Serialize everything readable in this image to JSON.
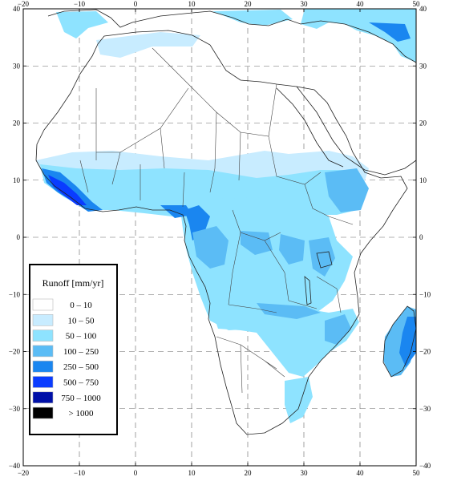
{
  "map": {
    "lon_range": [
      -20,
      50
    ],
    "lat_range": [
      -40,
      40
    ],
    "grid": "dashed",
    "lon_ticks": [
      "−20",
      "−10",
      "0",
      "10",
      "20",
      "30",
      "40",
      "50"
    ],
    "lat_ticks_left": [
      "40",
      "30",
      "20",
      "10",
      "0",
      "−10",
      "−20",
      "−30",
      "−40"
    ],
    "lat_ticks_right": [
      "40",
      "30",
      "20",
      "10",
      "0",
      "−10",
      "−20",
      "−30",
      "−40"
    ]
  },
  "legend": {
    "title": "Runoff [mm/yr]",
    "placement": "bottom-left",
    "items": [
      {
        "label": "0  –  10",
        "color": "#ffffff"
      },
      {
        "label": "10  –  50",
        "color": "#c8ecff"
      },
      {
        "label": "50  –  100",
        "color": "#8ee3ff"
      },
      {
        "label": "100  –  250",
        "color": "#5bbcf5"
      },
      {
        "label": "250  –  500",
        "color": "#1a86f0"
      },
      {
        "label": "500  –  750",
        "color": "#0a3cff"
      },
      {
        "label": "750  –  1000",
        "color": "#0010a8"
      },
      {
        "label": "> 1000",
        "color": "#000000"
      }
    ]
  }
}
